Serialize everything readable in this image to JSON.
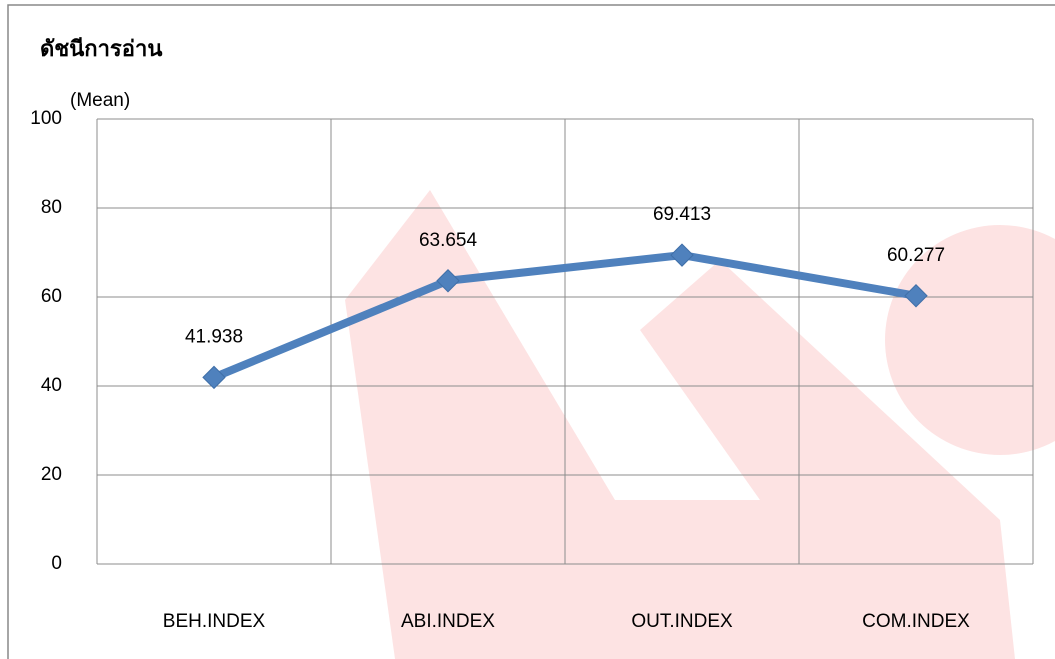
{
  "chart_data": {
    "type": "line",
    "title": "ดัชนีการอ่าน",
    "y_label": "(Mean)",
    "categories": [
      "BEH.INDEX",
      "ABI.INDEX",
      "OUT.INDEX",
      "COM.INDEX"
    ],
    "series": [
      {
        "name": "Mean",
        "color": "#4f81bd",
        "values": [
          41.938,
          63.654,
          69.413,
          60.277
        ]
      }
    ],
    "ylim": [
      0,
      100
    ],
    "yticks": [
      0,
      20,
      40,
      60,
      80,
      100
    ],
    "grid": true
  }
}
